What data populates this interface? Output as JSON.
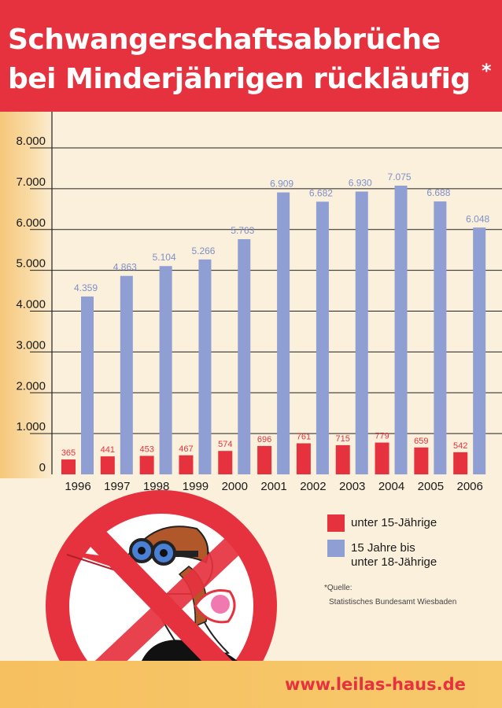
{
  "header": {
    "title_line_1": "Schwangerschaftsabbrüche",
    "title_line_2": "bei Minderjährigen rückläufig",
    "title_mark": "*"
  },
  "chart_data": {
    "type": "bar",
    "categories": [
      "1996",
      "1997",
      "1998",
      "1999",
      "2000",
      "2001",
      "2002",
      "2003",
      "2004",
      "2005",
      "2006"
    ],
    "series": [
      {
        "name": "unter 15-Jährige",
        "color": "#e6323e",
        "values": [
          365,
          441,
          453,
          467,
          574,
          696,
          761,
          715,
          779,
          659,
          542
        ],
        "labels": [
          "365",
          "441",
          "453",
          "467",
          "574",
          "696",
          "761",
          "715",
          "779",
          "659",
          "542"
        ]
      },
      {
        "name": "15 Jahre bis unter 18-Jährige",
        "color": "#8f9fd4",
        "values": [
          4359,
          4863,
          5104,
          5266,
          5763,
          6909,
          6682,
          6930,
          7075,
          6688,
          6048
        ],
        "labels": [
          "4.359",
          "4.863",
          "5.104",
          "5.266",
          "5.763",
          "6.909",
          "6.682",
          "6.930",
          "7.075",
          "6.688",
          "6.048"
        ]
      }
    ],
    "y_ticks": [
      0,
      1000,
      2000,
      3000,
      4000,
      5000,
      6000,
      7000,
      8000
    ],
    "y_tick_labels": [
      "0",
      "1.000",
      "2.000",
      "3.000",
      "4.000",
      "5.000",
      "6.000",
      "7.000",
      "8.000"
    ],
    "ylim": [
      0,
      8000
    ],
    "grid": true,
    "legend_position": "bottom-right"
  },
  "legend": {
    "item_1": "unter 15-Jährige",
    "item_2_line_1": "15 Jahre bis",
    "item_2_line_2": "unter 18-Jährige"
  },
  "source": {
    "label": "*Quelle:",
    "text": "Statistisches Bundesamt Wiesbaden"
  },
  "footer": {
    "website": "www.leilas-haus.de"
  },
  "colors": {
    "header_red": "#e6323e",
    "bar_red": "#e6323e",
    "bar_blue": "#8f9fd4",
    "background": "#fbf0db",
    "footer_yellow": "#f6c060"
  }
}
